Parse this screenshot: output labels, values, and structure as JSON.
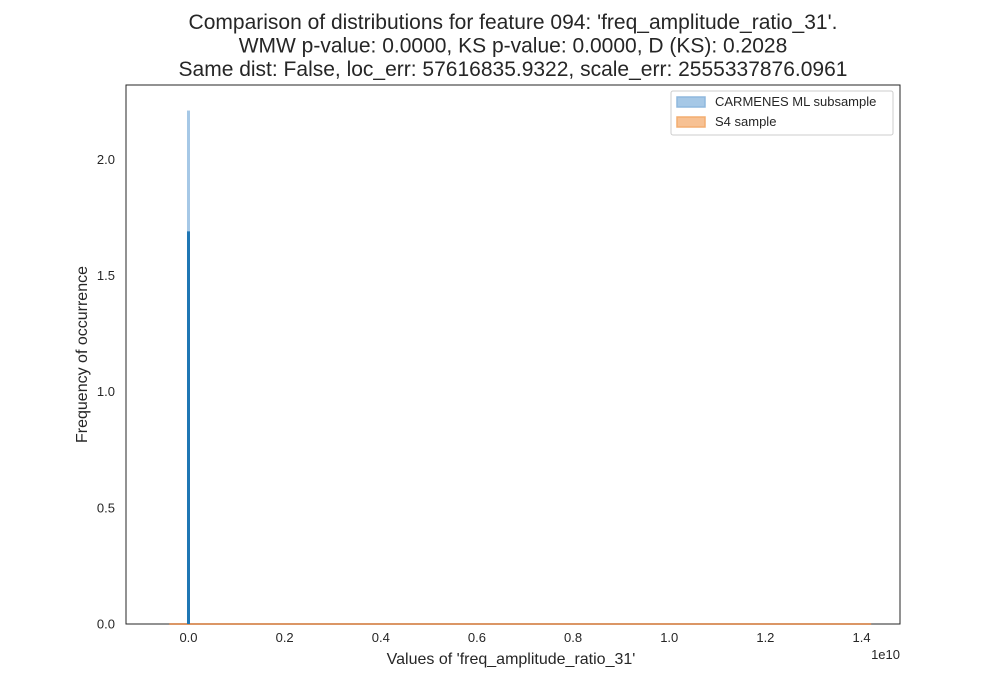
{
  "chart_data": {
    "type": "histogram",
    "title_lines": [
      "Comparison of distributions for feature 094: 'freq_amplitude_ratio_31'.",
      "WMW p-value: 0.0000, KS p-value: 0.0000, D (KS): 0.2028",
      "Same dist: False, loc_err: 57616835.9322, scale_err: 2555337876.0961"
    ],
    "xlabel": "Values of 'freq_amplitude_ratio_31'",
    "ylabel": "Frequency of occurrence",
    "x_offset_label": "1e10",
    "x_multiplier": 10000000000,
    "xlim": [
      -0.13,
      1.48
    ],
    "ylim": [
      0,
      2.32
    ],
    "x_ticks": [
      {
        "value": 0.0,
        "label": "0.0"
      },
      {
        "value": 0.2,
        "label": "0.2"
      },
      {
        "value": 0.4,
        "label": "0.4"
      },
      {
        "value": 0.6,
        "label": "0.6"
      },
      {
        "value": 0.8,
        "label": "0.8"
      },
      {
        "value": 1.0,
        "label": "1.0"
      },
      {
        "value": 1.2,
        "label": "1.2"
      },
      {
        "value": 1.4,
        "label": "1.4"
      }
    ],
    "y_ticks": [
      {
        "value": 0.0,
        "label": "0.0"
      },
      {
        "value": 0.5,
        "label": "0.5"
      },
      {
        "value": 1.0,
        "label": "1.0"
      },
      {
        "value": 1.5,
        "label": "1.5"
      },
      {
        "value": 2.0,
        "label": "2.0"
      }
    ],
    "grid": false,
    "legend_position": "top-right",
    "series": [
      {
        "name": "CARMENES ML subsample",
        "kind": "histogram",
        "x": 0.0,
        "value": 2.21,
        "color": "#a6c8e6"
      },
      {
        "name": "S4 sample",
        "kind": "histogram",
        "x_range": [
          -0.04,
          1.42
        ],
        "value": 0.0,
        "color": "#f7c193"
      }
    ],
    "overlap": {
      "x": 0.0,
      "value": 1.69,
      "color": "#1f77b4"
    },
    "baseline": {
      "x_range": [
        -0.04,
        1.42
      ],
      "color": "#cf7432"
    }
  }
}
